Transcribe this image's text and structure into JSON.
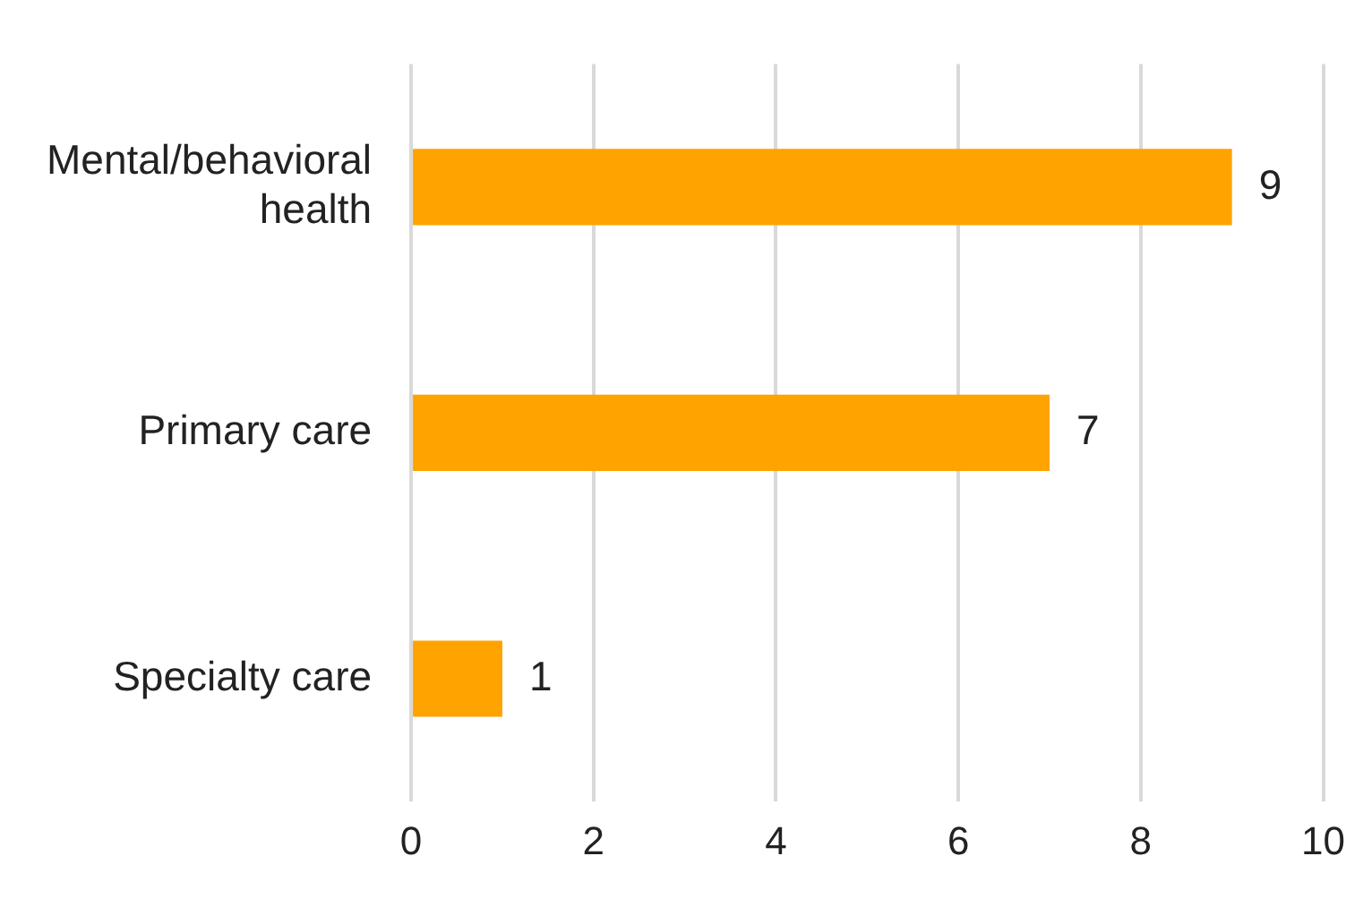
{
  "chart_data": {
    "type": "bar",
    "orientation": "horizontal",
    "categories": [
      "Mental/behavioral health",
      "Primary care",
      "Specialty care"
    ],
    "values": [
      9,
      7,
      1
    ],
    "color": "#ffa300",
    "xlim": [
      0,
      10
    ],
    "xticks": [
      0,
      2,
      4,
      6,
      8,
      10
    ],
    "grid": "x",
    "legend": false,
    "data_labels": true
  }
}
